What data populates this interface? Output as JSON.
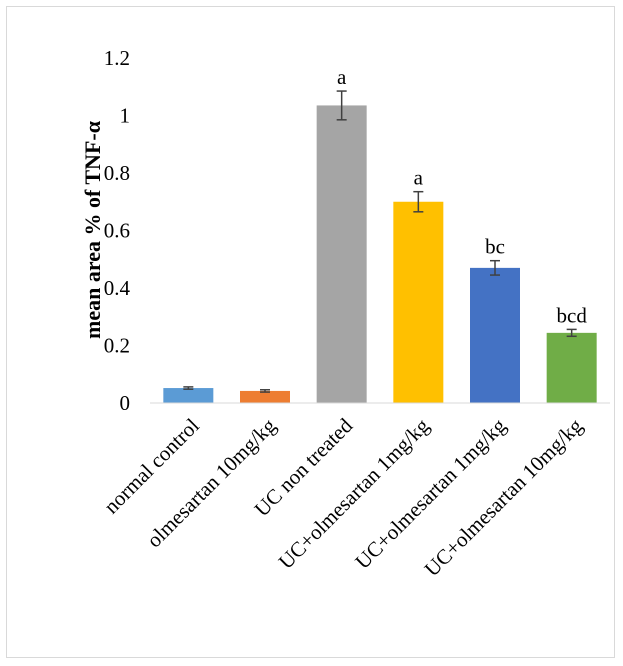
{
  "chart_data": {
    "type": "bar",
    "categories": [
      "normal control",
      "olmesartan 10mg/kg",
      "UC non treated",
      "UC+olmesartan 1mg/kg",
      "UC+olmesartan 1mg/kg",
      "UC+olmesartan 10mg/kg"
    ],
    "values": [
      0.052,
      0.042,
      1.035,
      0.7,
      0.47,
      0.244
    ],
    "errors": [
      0.004,
      0.004,
      0.05,
      0.035,
      0.025,
      0.012
    ],
    "significance": [
      "",
      "",
      "a",
      "a",
      "bc",
      "bcd"
    ],
    "colors": [
      "#5b9bd5",
      "#ed7d31",
      "#a5a5a5",
      "#ffc000",
      "#4472c4",
      "#70ad47"
    ],
    "ylabel": "mean area % of TNF-α",
    "ylim": [
      0,
      1.2
    ],
    "yticks": [
      "0",
      "0.2",
      "0.4",
      "0.6",
      "0.8",
      "1",
      "1.2"
    ],
    "grid": false,
    "legend": "none"
  }
}
